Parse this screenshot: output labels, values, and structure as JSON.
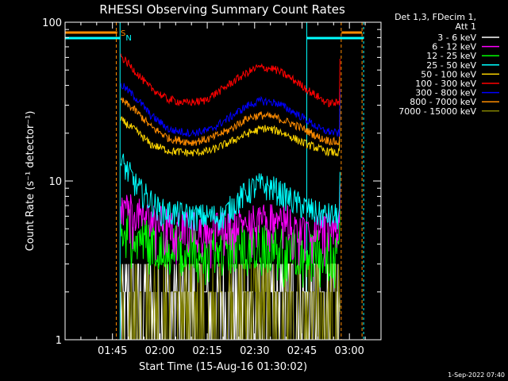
{
  "chart_data": {
    "type": "line",
    "title": "RHESSI Observing Summary Count Rates",
    "xlabel": "Start Time (15-Aug-16 01:30:02)",
    "ylabel": "Count Rate (s⁻¹ detector⁻¹)",
    "yscale": "log",
    "ylim": [
      1,
      100
    ],
    "xlim_minutes": [
      0,
      100
    ],
    "x_ticks": [
      {
        "label": "01:45",
        "t": 15
      },
      {
        "label": "02:00",
        "t": 30
      },
      {
        "label": "02:15",
        "t": 45
      },
      {
        "label": "02:30",
        "t": 60
      },
      {
        "label": "02:45",
        "t": 75
      },
      {
        "label": "03:00",
        "t": 90
      }
    ],
    "y_ticks": [
      {
        "label": "1",
        "v": 1
      },
      {
        "label": "10",
        "v": 10
      },
      {
        "label": "100",
        "v": 100
      }
    ],
    "legend_header": [
      "Det 1,3, FDecim 1,",
      "Att 1"
    ],
    "series": [
      {
        "name": "3 - 6 keV",
        "color": "#ffffff",
        "profile": "low",
        "noise": 0.5,
        "points": [
          [
            18,
            1.6
          ],
          [
            30,
            1.5
          ],
          [
            45,
            1.5
          ],
          [
            60,
            1.6
          ],
          [
            75,
            1.5
          ],
          [
            86,
            1.6
          ]
        ]
      },
      {
        "name": "6 - 12 keV",
        "color": "#ff00ff",
        "profile": "band",
        "noise": 0.25,
        "points": [
          [
            18,
            7.0
          ],
          [
            25,
            6.0
          ],
          [
            35,
            5.3
          ],
          [
            45,
            5.0
          ],
          [
            52,
            5.2
          ],
          [
            60,
            6.0
          ],
          [
            66,
            6.3
          ],
          [
            75,
            5.2
          ],
          [
            86,
            5.0
          ]
        ]
      },
      {
        "name": "12 - 25 keV",
        "color": "#00ff00",
        "profile": "band",
        "noise": 0.35,
        "points": [
          [
            18,
            5.5
          ],
          [
            25,
            4.5
          ],
          [
            35,
            4.0
          ],
          [
            45,
            3.8
          ],
          [
            60,
            4.0
          ],
          [
            75,
            3.8
          ],
          [
            86,
            3.5
          ]
        ]
      },
      {
        "name": "25 - 50 keV",
        "color": "#00ffff",
        "profile": "band",
        "noise": 0.2,
        "points": [
          [
            18,
            13
          ],
          [
            23,
            9
          ],
          [
            30,
            6.5
          ],
          [
            40,
            6.0
          ],
          [
            50,
            6.0
          ],
          [
            56,
            8.0
          ],
          [
            61,
            9.5
          ],
          [
            66,
            9.0
          ],
          [
            72,
            7.5
          ],
          [
            80,
            6.2
          ],
          [
            86,
            6.0
          ]
        ]
      },
      {
        "name": "50 - 100 keV",
        "color": "#ffd700",
        "profile": "band",
        "noise": 0.06,
        "points": [
          [
            18,
            24
          ],
          [
            22,
            21
          ],
          [
            27,
            17
          ],
          [
            33,
            15.5
          ],
          [
            40,
            15.0
          ],
          [
            46,
            15.5
          ],
          [
            52,
            17.5
          ],
          [
            58,
            20.0
          ],
          [
            63,
            21.5
          ],
          [
            68,
            20.5
          ],
          [
            75,
            17.5
          ],
          [
            82,
            15.5
          ],
          [
            86,
            15.0
          ]
        ]
      },
      {
        "name": "100 - 300 keV",
        "color": "#ff0000",
        "profile": "band",
        "noise": 0.06,
        "points": [
          [
            18,
            60
          ],
          [
            21,
            52
          ],
          [
            26,
            40
          ],
          [
            32,
            33
          ],
          [
            38,
            31
          ],
          [
            44,
            32
          ],
          [
            50,
            38
          ],
          [
            56,
            46
          ],
          [
            61,
            52
          ],
          [
            66,
            51
          ],
          [
            71,
            45
          ],
          [
            78,
            36
          ],
          [
            83,
            31
          ],
          [
            86,
            31
          ]
        ]
      },
      {
        "name": "300 - 800 keV",
        "color": "#0000ff",
        "profile": "band",
        "noise": 0.06,
        "points": [
          [
            18,
            40
          ],
          [
            22,
            34
          ],
          [
            27,
            26
          ],
          [
            33,
            21
          ],
          [
            40,
            20
          ],
          [
            46,
            21
          ],
          [
            52,
            25
          ],
          [
            58,
            30
          ],
          [
            62,
            32
          ],
          [
            67,
            31
          ],
          [
            74,
            26
          ],
          [
            81,
            21
          ],
          [
            86,
            20
          ]
        ]
      },
      {
        "name": "800 - 7000 keV",
        "color": "#ff8c00",
        "profile": "band",
        "noise": 0.06,
        "points": [
          [
            18,
            32
          ],
          [
            22,
            28
          ],
          [
            27,
            22
          ],
          [
            33,
            18.5
          ],
          [
            40,
            17.5
          ],
          [
            46,
            18.5
          ],
          [
            52,
            21
          ],
          [
            58,
            25
          ],
          [
            62,
            26
          ],
          [
            67,
            25
          ],
          [
            74,
            22
          ],
          [
            81,
            18.5
          ],
          [
            86,
            17.5
          ]
        ]
      },
      {
        "name": "7000 - 15000 keV",
        "color": "#808000",
        "profile": "low",
        "noise": 0.4,
        "points": [
          [
            18,
            1.5
          ],
          [
            30,
            1.4
          ],
          [
            45,
            1.4
          ],
          [
            60,
            1.5
          ],
          [
            75,
            1.4
          ],
          [
            86,
            1.5
          ]
        ]
      }
    ],
    "flags": [
      {
        "label": "S",
        "color": "#ff8c00"
      },
      {
        "label": "N",
        "color": "#00ffff"
      }
    ],
    "footer_stamp": "1-Sep-2022 07:40"
  }
}
